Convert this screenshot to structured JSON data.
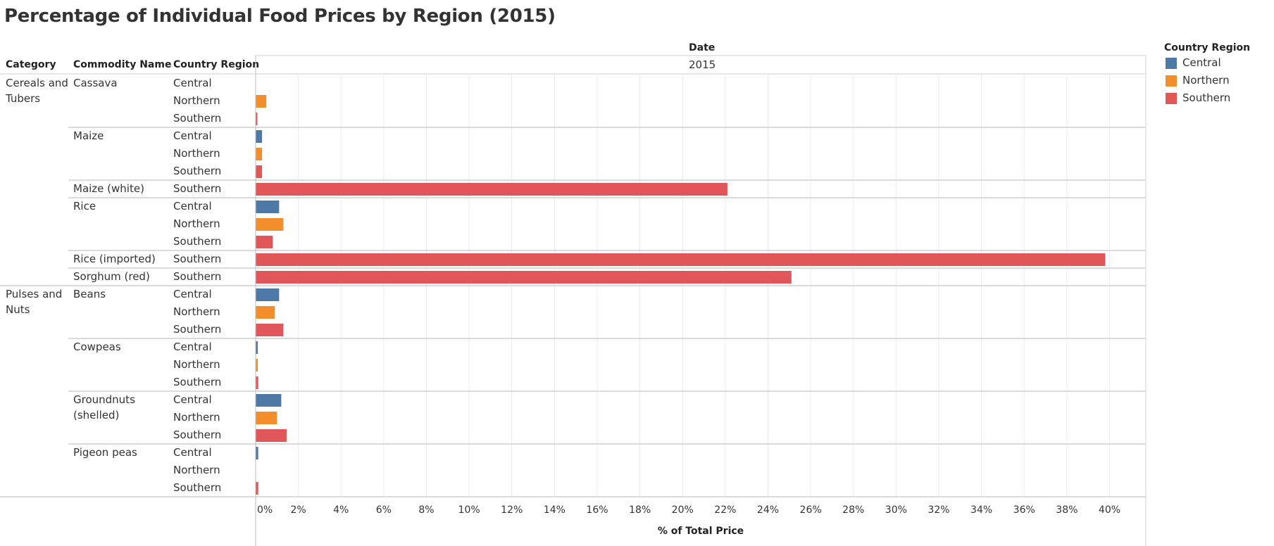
{
  "title": "Percentage of Individual Food Prices by Region (2015)",
  "headers": {
    "category": "Category",
    "commodity": "Commodity Name",
    "region": "Country Region",
    "date": "Date",
    "year": "2015"
  },
  "legend": {
    "title": "Country Region",
    "items": [
      {
        "label": "Central",
        "color": "#4e79a7"
      },
      {
        "label": "Northern",
        "color": "#f28e2b"
      },
      {
        "label": "Southern",
        "color": "#e15759"
      }
    ]
  },
  "chart_data": {
    "type": "bar",
    "orientation": "horizontal",
    "title": "Percentage of Individual Food Prices by Region (2015)",
    "xlabel": "% of Total Price",
    "xlim": [
      0,
      41.7
    ],
    "x_ticks": [
      "0%",
      "2%",
      "4%",
      "6%",
      "8%",
      "10%",
      "12%",
      "14%",
      "16%",
      "18%",
      "20%",
      "22%",
      "24%",
      "26%",
      "28%",
      "30%",
      "32%",
      "34%",
      "36%",
      "38%",
      "40%"
    ],
    "grid": true,
    "legend_position": "top-right",
    "colors": {
      "Central": "#4e79a7",
      "Northern": "#f28e2b",
      "Southern": "#e15759"
    },
    "groups": [
      {
        "category": "Cereals and Tubers",
        "commodities": [
          {
            "name": "Cassava",
            "rows": [
              {
                "region": "Central",
                "value": 0
              },
              {
                "region": "Northern",
                "value": 0.5
              },
              {
                "region": "Southern",
                "value": 0.08
              }
            ]
          },
          {
            "name": "Maize",
            "rows": [
              {
                "region": "Central",
                "value": 0.3
              },
              {
                "region": "Northern",
                "value": 0.3
              },
              {
                "region": "Southern",
                "value": 0.3
              }
            ]
          },
          {
            "name": "Maize (white)",
            "rows": [
              {
                "region": "Southern",
                "value": 22.1
              }
            ]
          },
          {
            "name": "Rice",
            "rows": [
              {
                "region": "Central",
                "value": 1.1
              },
              {
                "region": "Northern",
                "value": 1.3
              },
              {
                "region": "Southern",
                "value": 0.8
              }
            ]
          },
          {
            "name": "Rice (imported)",
            "rows": [
              {
                "region": "Southern",
                "value": 39.8
              }
            ]
          },
          {
            "name": "Sorghum (red)",
            "rows": [
              {
                "region": "Southern",
                "value": 25.1
              }
            ]
          }
        ]
      },
      {
        "category": "Pulses and Nuts",
        "commodities": [
          {
            "name": "Beans",
            "rows": [
              {
                "region": "Central",
                "value": 1.1
              },
              {
                "region": "Northern",
                "value": 0.9
              },
              {
                "region": "Southern",
                "value": 1.3
              }
            ]
          },
          {
            "name": "Cowpeas",
            "rows": [
              {
                "region": "Central",
                "value": 0.1
              },
              {
                "region": "Northern",
                "value": 0.1
              },
              {
                "region": "Southern",
                "value": 0.12
              }
            ]
          },
          {
            "name": "Groundnuts (shelled)",
            "rows": [
              {
                "region": "Central",
                "value": 1.2
              },
              {
                "region": "Northern",
                "value": 1.0
              },
              {
                "region": "Southern",
                "value": 1.45
              }
            ]
          },
          {
            "name": "Pigeon peas",
            "rows": [
              {
                "region": "Central",
                "value": 0.12
              },
              {
                "region": "Northern",
                "value": 0
              },
              {
                "region": "Southern",
                "value": 0.12
              }
            ]
          }
        ]
      }
    ]
  }
}
